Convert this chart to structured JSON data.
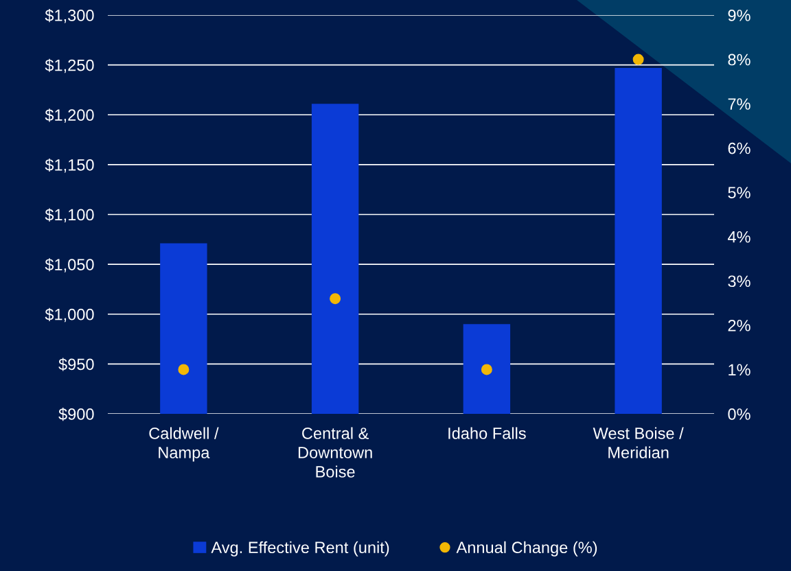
{
  "chart_data": {
    "type": "bar",
    "categories": [
      "Caldwell /\nNampa",
      "Central &\nDowntown\nBoise",
      "Idaho Falls",
      "West Boise /\nMeridian"
    ],
    "series": [
      {
        "name": "Avg. Effective Rent (unit)",
        "color": "#0b3bd6",
        "values": [
          1071,
          1211,
          990,
          1247
        ]
      },
      {
        "name": "Annual Change (%)",
        "type": "scatter",
        "axis": "y2",
        "color": "#f2b705",
        "values": [
          1.0,
          2.6,
          1.0,
          8.0
        ]
      }
    ],
    "ylim": [
      900,
      1300
    ],
    "yticks": [
      {
        "value": 900,
        "label": "$900"
      },
      {
        "value": 950,
        "label": "$950"
      },
      {
        "value": 1000,
        "label": "$1,000"
      },
      {
        "value": 1050,
        "label": "$1,050"
      },
      {
        "value": 1100,
        "label": "$1,100"
      },
      {
        "value": 1150,
        "label": "$1,150"
      },
      {
        "value": 1200,
        "label": "$1,200"
      },
      {
        "value": 1250,
        "label": "$1,250"
      },
      {
        "value": 1300,
        "label": "$1,300"
      }
    ],
    "y2lim": [
      0,
      9
    ],
    "y2ticks": [
      {
        "value": 0,
        "label": "0%"
      },
      {
        "value": 1,
        "label": "1%"
      },
      {
        "value": 2,
        "label": "2%"
      },
      {
        "value": 3,
        "label": "3%"
      },
      {
        "value": 4,
        "label": "4%"
      },
      {
        "value": 5,
        "label": "5%"
      },
      {
        "value": 6,
        "label": "6%"
      },
      {
        "value": 7,
        "label": "7%"
      },
      {
        "value": 8,
        "label": "8%"
      },
      {
        "value": 9,
        "label": "9%"
      }
    ],
    "grid": "y",
    "legend": "bottom",
    "marker": "circle"
  }
}
